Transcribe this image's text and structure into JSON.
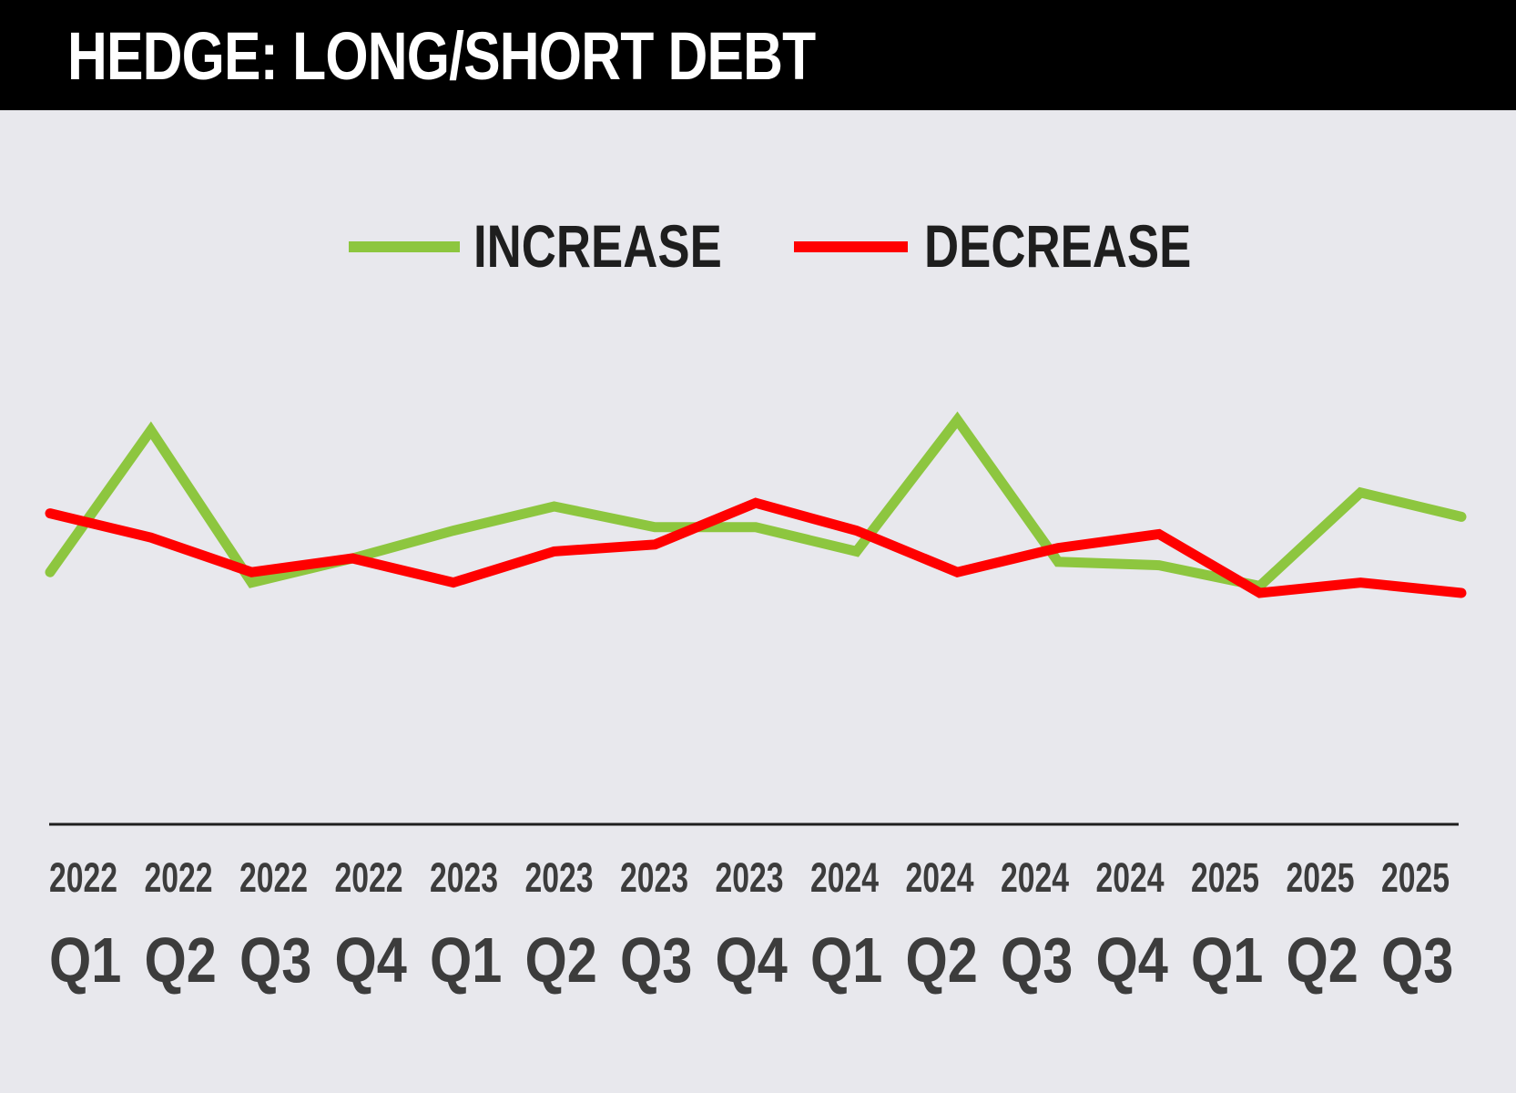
{
  "header": {
    "title": "HEDGE: LONG/SHORT DEBT"
  },
  "colors": {
    "background": "#e8e8ed",
    "header_bg": "#000000",
    "increase": "#8dc63f",
    "decrease": "#ff0000",
    "axis": "#1e1e1e",
    "tick_text": "#3c3c3c"
  },
  "chart_data": {
    "type": "line",
    "title": "HEDGE: LONG/SHORT DEBT",
    "xlabel": "",
    "ylabel": "",
    "grid": false,
    "legend": "top-center",
    "categories": [
      {
        "year": "2022",
        "quarter": "Q1"
      },
      {
        "year": "2022",
        "quarter": "Q2"
      },
      {
        "year": "2022",
        "quarter": "Q3"
      },
      {
        "year": "2022",
        "quarter": "Q4"
      },
      {
        "year": "2023",
        "quarter": "Q1"
      },
      {
        "year": "2023",
        "quarter": "Q2"
      },
      {
        "year": "2023",
        "quarter": "Q3"
      },
      {
        "year": "2023",
        "quarter": "Q4"
      },
      {
        "year": "2024",
        "quarter": "Q1"
      },
      {
        "year": "2024",
        "quarter": "Q2"
      },
      {
        "year": "2024",
        "quarter": "Q3"
      },
      {
        "year": "2024",
        "quarter": "Q4"
      },
      {
        "year": "2025",
        "quarter": "Q1"
      },
      {
        "year": "2025",
        "quarter": "Q2"
      },
      {
        "year": "2025",
        "quarter": "Q3"
      }
    ],
    "ylim": [
      0,
      100
    ],
    "series": [
      {
        "name": "INCREASE",
        "color": "#8dc63f",
        "values": [
          31,
          72,
          28,
          35,
          43,
          50,
          44,
          44,
          37,
          75,
          34,
          33,
          27,
          54,
          47
        ]
      },
      {
        "name": "DECREASE",
        "color": "#ff0000",
        "values": [
          48,
          41,
          31,
          35,
          28,
          37,
          39,
          51,
          43,
          31,
          38,
          42,
          25,
          28,
          25
        ]
      }
    ]
  }
}
